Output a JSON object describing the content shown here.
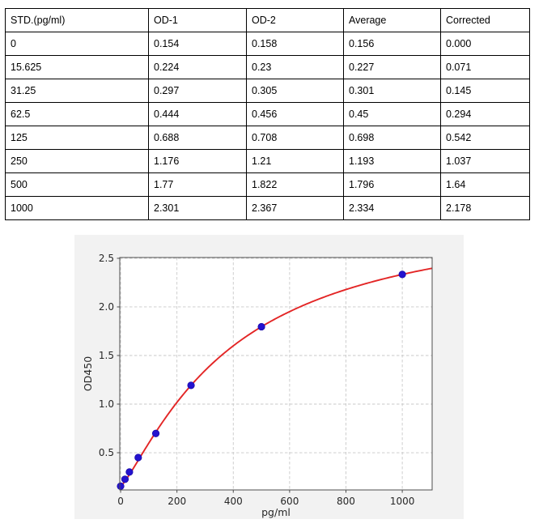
{
  "table": {
    "columns": [
      "STD.(pg/ml)",
      "OD-1",
      "OD-2",
      "Average",
      "Corrected"
    ],
    "rows": [
      [
        "0",
        "0.154",
        "0.158",
        "0.156",
        "0.000"
      ],
      [
        "15.625",
        "0.224",
        "0.23",
        "0.227",
        "0.071"
      ],
      [
        "31.25",
        "0.297",
        "0.305",
        "0.301",
        "0.145"
      ],
      [
        "62.5",
        "0.444",
        "0.456",
        "0.45",
        "0.294"
      ],
      [
        "125",
        "0.688",
        "0.708",
        "0.698",
        "0.542"
      ],
      [
        "250",
        "1.176",
        "1.21",
        "1.193",
        "1.037"
      ],
      [
        "500",
        "1.77",
        "1.822",
        "1.796",
        "1.64"
      ],
      [
        "1000",
        "2.301",
        "2.367",
        "2.334",
        "2.178"
      ]
    ]
  },
  "chart_data": {
    "type": "scatter",
    "title": "",
    "xlabel": "pg/ml",
    "ylabel": "OD450",
    "points": {
      "x": [
        0,
        15.625,
        31.25,
        62.5,
        125,
        250,
        500,
        1000
      ],
      "y": [
        0.156,
        0.227,
        0.301,
        0.45,
        0.698,
        1.193,
        1.796,
        2.334
      ]
    },
    "fit_curve": {
      "model": "4PL",
      "a": 0.156,
      "b": 1.235,
      "c": 397.4,
      "d": 3.031,
      "x_min": 0,
      "x_max": 1106
    },
    "xlim": [
      -3,
      1106
    ],
    "ylim": [
      0.117,
      2.508
    ],
    "x_tick_values": [
      0,
      200,
      400,
      600,
      800,
      1000
    ],
    "x_tick_labels": [
      "0",
      "200",
      "400",
      "600",
      "800",
      "1000"
    ],
    "y_tick_values": [
      0.5,
      1.0,
      1.5,
      2.0,
      2.5
    ],
    "y_tick_labels": [
      "0.5",
      "1.0",
      "1.5",
      "2.0",
      "2.5"
    ],
    "grid": true,
    "legend": "none",
    "colors": {
      "curve": "#e32525",
      "marker": "#2412cf",
      "marker_edge": "#1a0ba8",
      "grid": "#c9c9c9",
      "figure_bg": "#f2f2f2",
      "plot_bg": "#ffffff",
      "spine": "#4d4d4d",
      "tick_text": "#262626"
    }
  }
}
